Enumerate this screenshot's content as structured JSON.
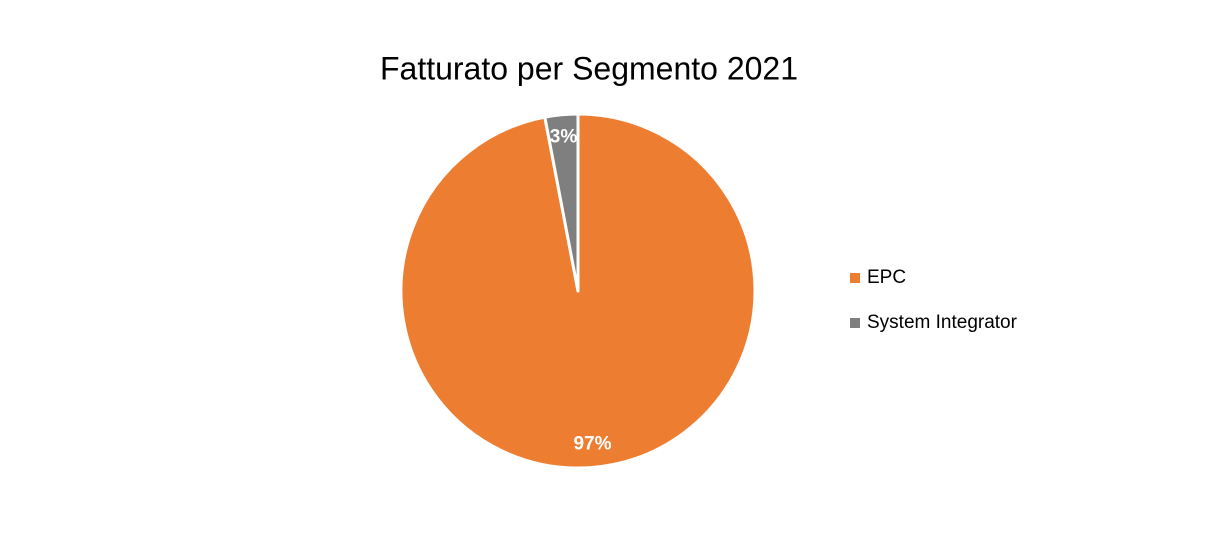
{
  "chart_data": {
    "type": "pie",
    "title": "Fatturato per Segmento 2021",
    "categories": [
      "EPC",
      "System Integrator"
    ],
    "values": [
      97,
      3
    ],
    "value_labels": [
      "97%",
      "3%"
    ],
    "colors": [
      "#ed7d31",
      "#7f7f7f"
    ],
    "legend": "right"
  }
}
